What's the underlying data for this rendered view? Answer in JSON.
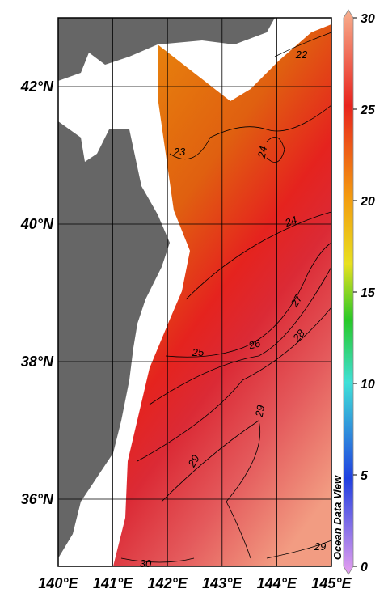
{
  "map": {
    "lon_ticks": [
      {
        "value": 140,
        "label": "140°E"
      },
      {
        "value": 141,
        "label": "141°E"
      },
      {
        "value": 142,
        "label": "142°E"
      },
      {
        "value": 143,
        "label": "143°E"
      },
      {
        "value": 144,
        "label": "144°E"
      },
      {
        "value": 145,
        "label": "145°E"
      }
    ],
    "lat_ticks": [
      {
        "value": 42,
        "label": "42°N"
      },
      {
        "value": 40,
        "label": "40°N"
      },
      {
        "value": 38,
        "label": "38°N"
      },
      {
        "value": 36,
        "label": "36°N"
      }
    ],
    "contour_labels": [
      22,
      23,
      24,
      24,
      25,
      26,
      27,
      28,
      29,
      29,
      29,
      30
    ],
    "watermark": "Ocean Data View"
  },
  "colorbar": {
    "range": [
      0,
      30
    ],
    "ticks": [
      0,
      5,
      10,
      15,
      20,
      25,
      30
    ]
  }
}
